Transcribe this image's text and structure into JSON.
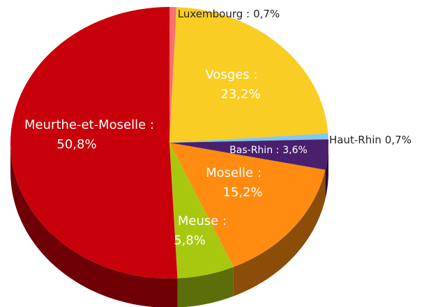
{
  "chart_data": {
    "type": "pie",
    "categories": [
      "Luxembourg :",
      "Vosges :",
      "Haut-Rhin",
      "Bas-Rhin :",
      "Moselle :",
      "Meuse :",
      "Meurthe-et-Moselle :"
    ],
    "values": [
      0.7,
      23.2,
      0.7,
      3.6,
      15.2,
      5.8,
      50.8
    ],
    "value_labels": [
      "0,7%",
      "23,2%",
      "0,7%",
      "3,6%",
      "15,2%",
      "5,8%",
      "50,8%"
    ],
    "colors": [
      "#ff6f6f",
      "#f9cd23",
      "#84c8ee",
      "#4a1f6e",
      "#ff8c10",
      "#a8c810",
      "#c8000b"
    ]
  }
}
